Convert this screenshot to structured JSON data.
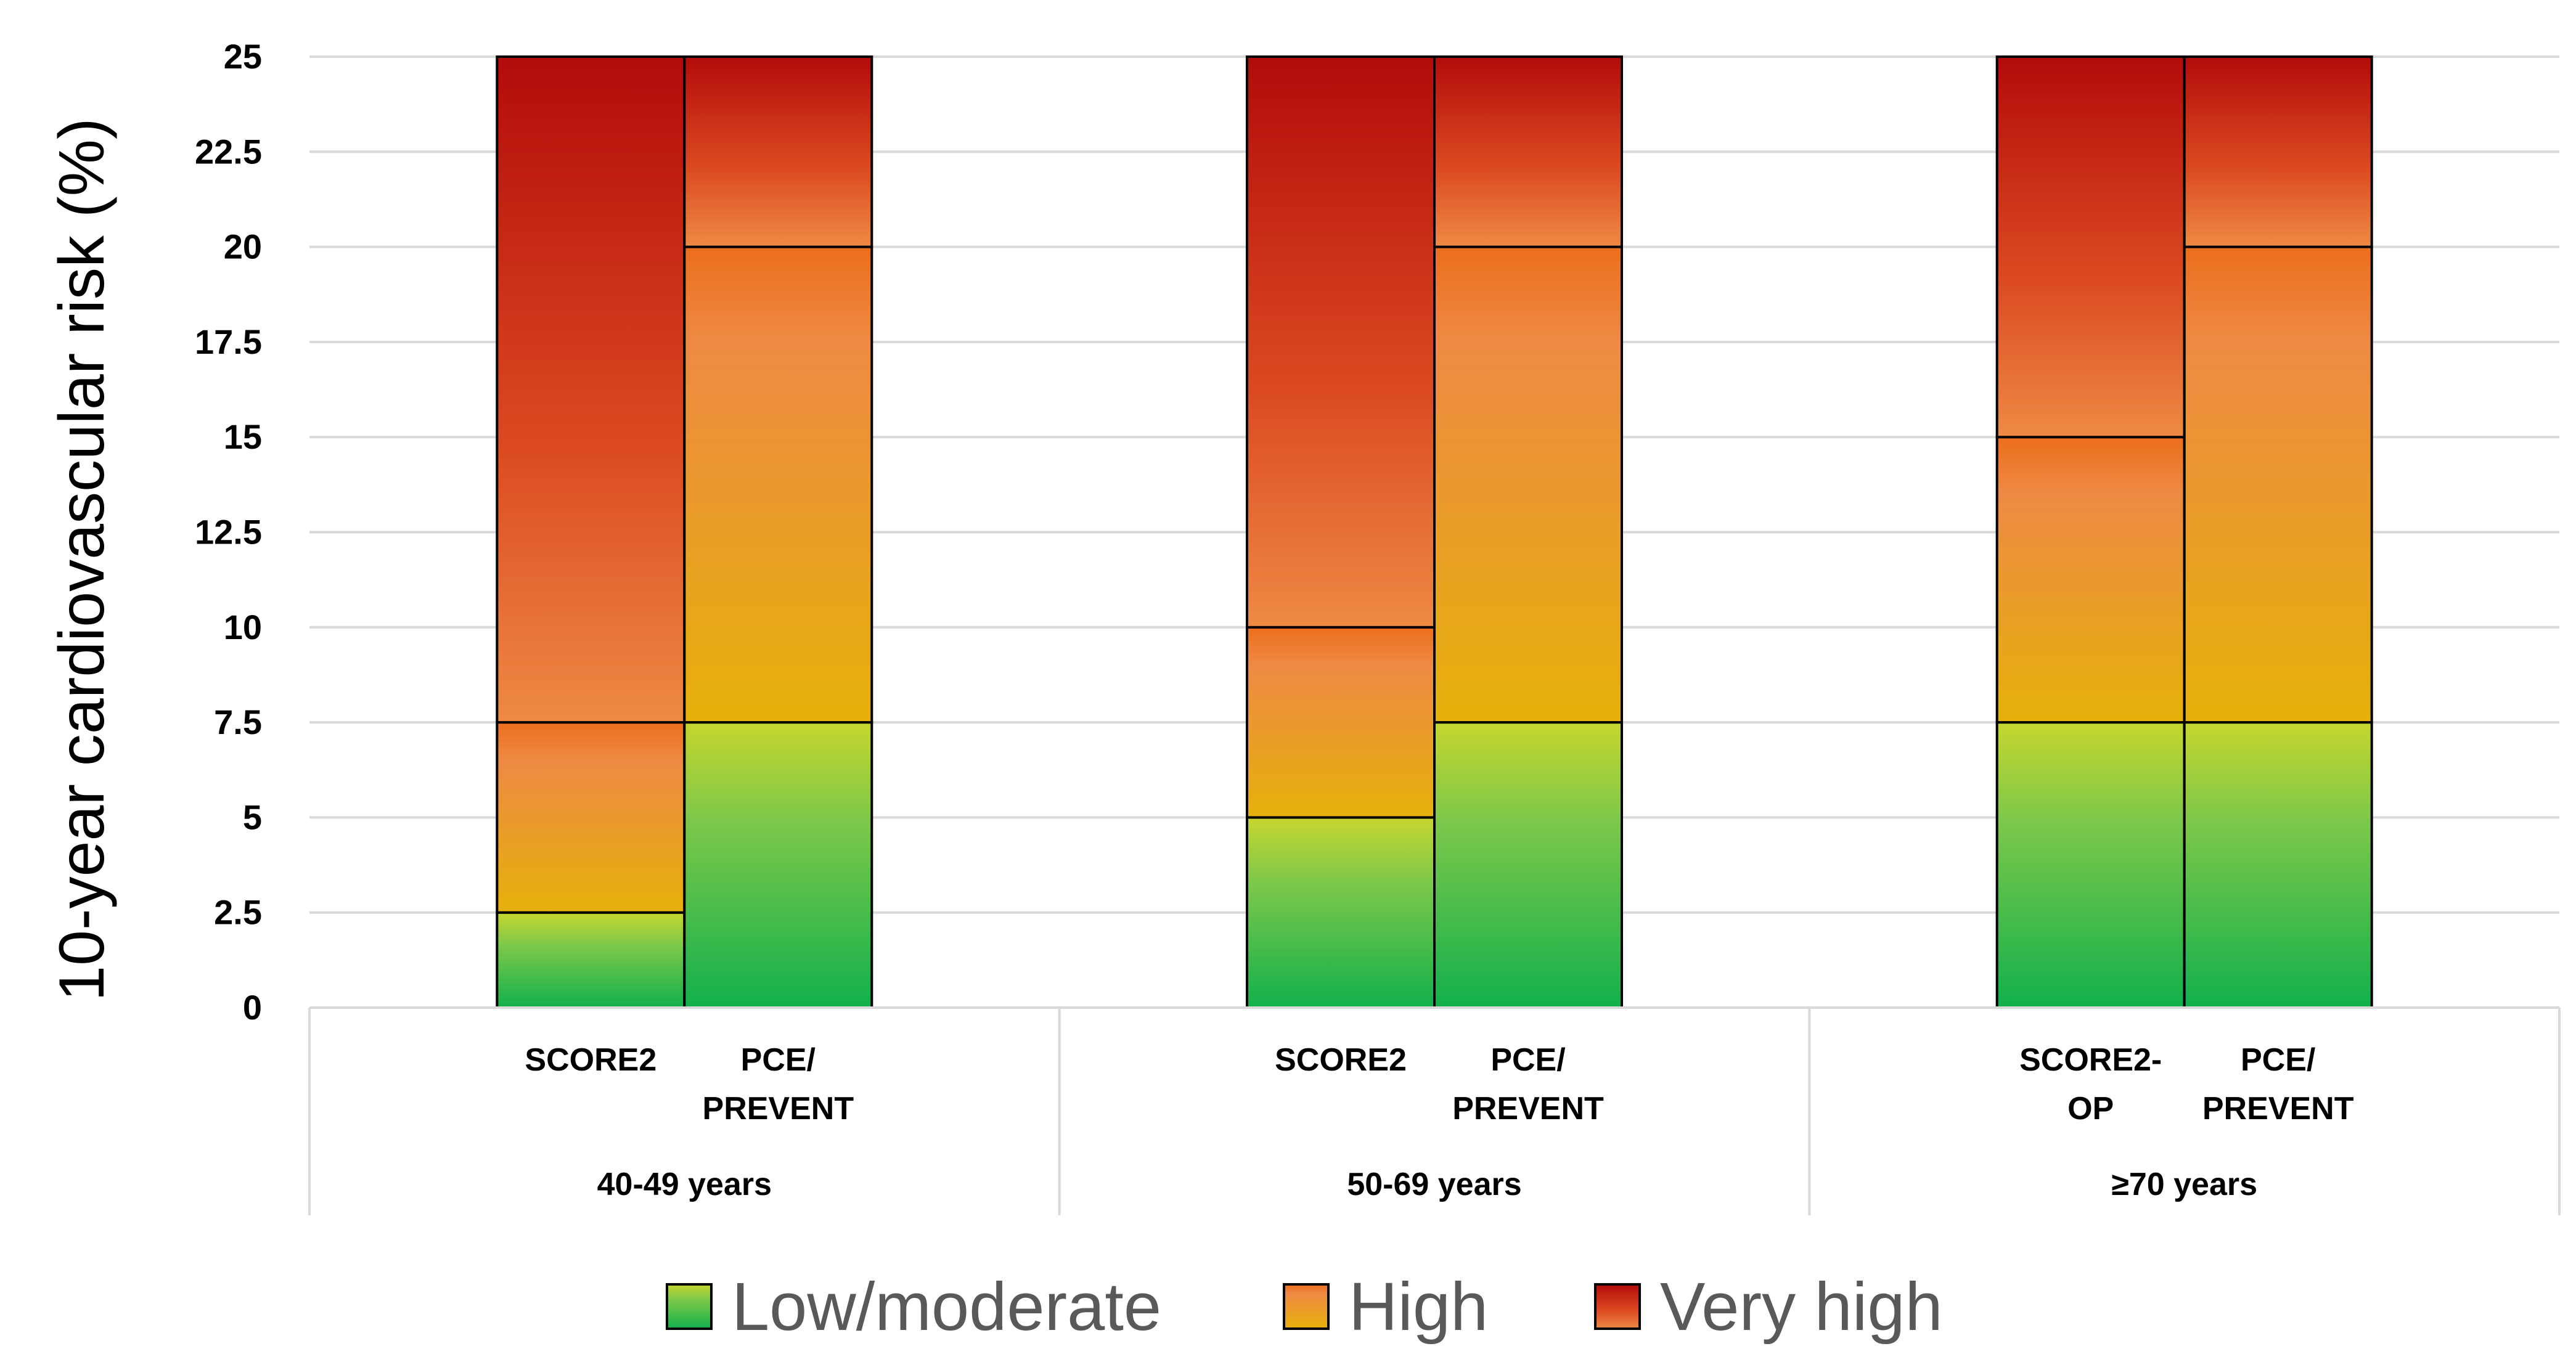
{
  "chart_data": {
    "type": "bar",
    "subtype": "stacked-range",
    "ylabel": "10-year cardiovascular risk (%)",
    "xlabel": "",
    "ylim": [
      0,
      25
    ],
    "yticks": [
      "0",
      "2.5",
      "5",
      "7.5",
      "10",
      "12.5",
      "15",
      "17.5",
      "20",
      "22.5",
      "25"
    ],
    "grid": true,
    "legend_position": "bottom",
    "categories_legend": [
      {
        "name": "Low/moderate",
        "color_top": "#b7d332",
        "color_bottom": "#12b04c"
      },
      {
        "name": "High",
        "color_top": "#ee8a44",
        "color_bottom": "#e7b00c"
      },
      {
        "name": "Very high",
        "color_top": "#b80f0a",
        "color_bottom": "#ee8a44"
      }
    ],
    "groups": [
      {
        "label": "40-49 years",
        "bars": [
          {
            "label": [
              "SCORE2"
            ],
            "thresholds": [
              0,
              2.5,
              7.5,
              25
            ]
          },
          {
            "label": [
              "PCE/",
              "PREVENT"
            ],
            "thresholds": [
              0,
              7.5,
              20,
              25
            ]
          }
        ]
      },
      {
        "label": "50-69 years",
        "bars": [
          {
            "label": [
              "SCORE2"
            ],
            "thresholds": [
              0,
              5,
              10,
              25
            ]
          },
          {
            "label": [
              "PCE/",
              "PREVENT"
            ],
            "thresholds": [
              0,
              7.5,
              20,
              25
            ]
          }
        ]
      },
      {
        "label": "≥70 years",
        "bars": [
          {
            "label": [
              "SCORE2-",
              "OP"
            ],
            "thresholds": [
              0,
              7.5,
              15,
              25
            ]
          },
          {
            "label": [
              "PCE/",
              "PREVENT"
            ],
            "thresholds": [
              0,
              7.5,
              20,
              25
            ]
          }
        ]
      }
    ]
  }
}
